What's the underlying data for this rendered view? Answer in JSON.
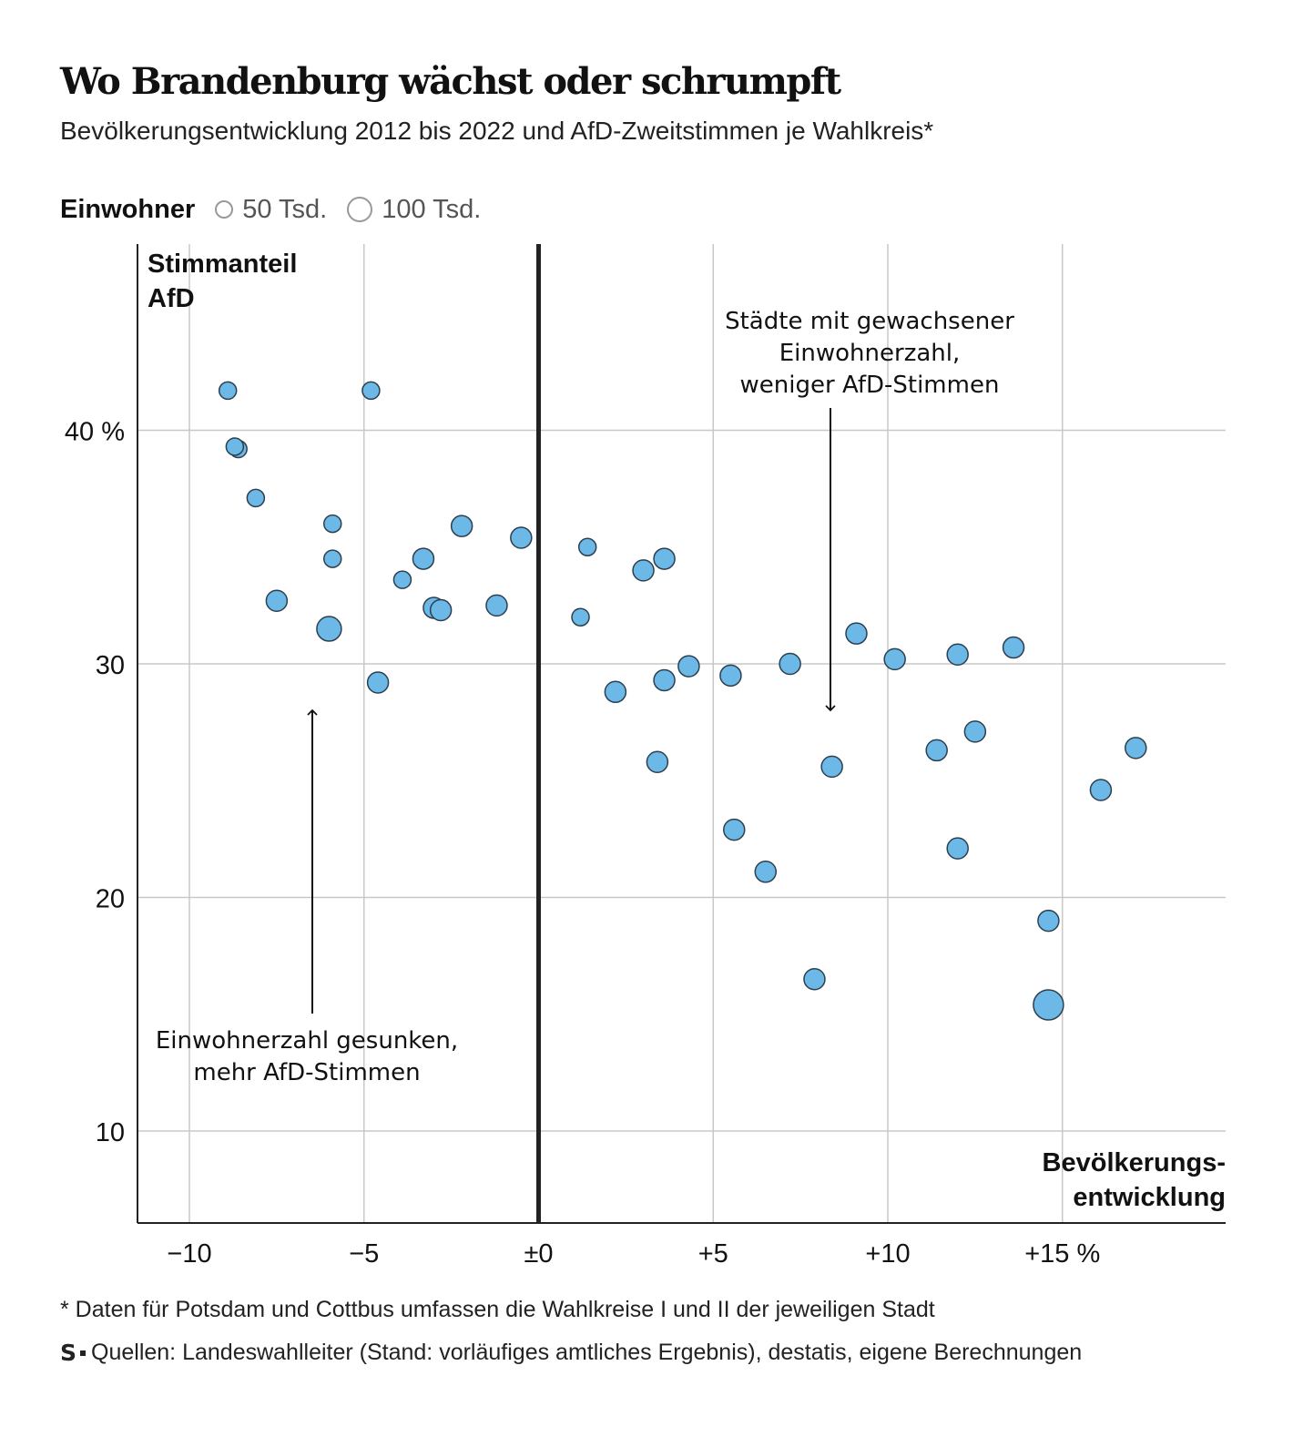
{
  "header": {
    "title": "Wo Brandenburg wächst oder schrumpft",
    "subtitle": "Bevölkerungsentwicklung 2012 bis 2022 und AfD-Zweitstimmen je Wahlkreis*"
  },
  "legend": {
    "title": "Einwohner",
    "small_label": "50 Tsd.",
    "large_label": "100 Tsd."
  },
  "footer": {
    "note": "* Daten für Potsdam und Cottbus umfassen die Wahlkreise I und II der jeweiligen Stadt",
    "source": "Quellen: Landeswahlleiter (Stand: vorläufiges amtliches Ergebnis), destatis, eigene Berechnungen",
    "logo": "S"
  },
  "colors": {
    "dot": "#6cb8e6",
    "dot_stroke": "#2d3f4f",
    "grid": "#c8c8c8",
    "zero_line": "#222222"
  },
  "chart_data": {
    "type": "scatter",
    "title": "Wo Brandenburg wächst oder schrumpft",
    "xlabel": "Bevölkerungs-\nentwicklung",
    "ylabel": "Stimmanteil\nAfD",
    "xlim": [
      -11.5,
      19.8
    ],
    "ylim": [
      6,
      48
    ],
    "x_ticks": [
      -10,
      -5,
      0,
      5,
      10,
      15
    ],
    "x_tick_labels": [
      "−10",
      "−5",
      "±0",
      "+5",
      "+10",
      "+15 %"
    ],
    "y_ticks": [
      10,
      20,
      30,
      40
    ],
    "y_tick_labels": [
      "10",
      "20",
      "30",
      "40 %"
    ],
    "grid": true,
    "annotations": [
      {
        "text": "Städte mit gewachsener\nEinwohnerzahl,\nweniger AfD-Stimmen",
        "arrow": "down"
      },
      {
        "text": "Einwohnerzahl gesunken,\nmehr AfD-Stimmen",
        "arrow": "up"
      }
    ],
    "points": [
      {
        "x": -8.9,
        "y": 41.7,
        "size": "s"
      },
      {
        "x": -4.8,
        "y": 41.7,
        "size": "s"
      },
      {
        "x": -8.6,
        "y": 39.2,
        "size": "s"
      },
      {
        "x": -8.7,
        "y": 39.3,
        "size": "s"
      },
      {
        "x": -8.1,
        "y": 37.1,
        "size": "s"
      },
      {
        "x": -5.9,
        "y": 36.0,
        "size": "s"
      },
      {
        "x": -2.2,
        "y": 35.9,
        "size": "m"
      },
      {
        "x": -0.5,
        "y": 35.4,
        "size": "m"
      },
      {
        "x": 1.4,
        "y": 35.0,
        "size": "s"
      },
      {
        "x": -5.9,
        "y": 34.5,
        "size": "s"
      },
      {
        "x": -3.3,
        "y": 34.5,
        "size": "m"
      },
      {
        "x": 3.6,
        "y": 34.5,
        "size": "m"
      },
      {
        "x": 3.0,
        "y": 34.0,
        "size": "m"
      },
      {
        "x": -3.9,
        "y": 33.6,
        "size": "s"
      },
      {
        "x": -7.5,
        "y": 32.7,
        "size": "m"
      },
      {
        "x": -1.2,
        "y": 32.5,
        "size": "m"
      },
      {
        "x": -3.0,
        "y": 32.4,
        "size": "m"
      },
      {
        "x": -2.8,
        "y": 32.3,
        "size": "m"
      },
      {
        "x": 1.2,
        "y": 32.0,
        "size": "s"
      },
      {
        "x": -6.0,
        "y": 31.5,
        "size": "l"
      },
      {
        "x": 9.1,
        "y": 31.3,
        "size": "m"
      },
      {
        "x": 13.6,
        "y": 30.7,
        "size": "m"
      },
      {
        "x": 12.0,
        "y": 30.4,
        "size": "m"
      },
      {
        "x": 10.2,
        "y": 30.2,
        "size": "m"
      },
      {
        "x": 7.2,
        "y": 30.0,
        "size": "m"
      },
      {
        "x": 4.3,
        "y": 29.9,
        "size": "m"
      },
      {
        "x": 5.5,
        "y": 29.5,
        "size": "m"
      },
      {
        "x": 3.6,
        "y": 29.3,
        "size": "m"
      },
      {
        "x": -4.6,
        "y": 29.2,
        "size": "m"
      },
      {
        "x": 2.2,
        "y": 28.8,
        "size": "m"
      },
      {
        "x": 12.5,
        "y": 27.1,
        "size": "m"
      },
      {
        "x": 17.1,
        "y": 26.4,
        "size": "m"
      },
      {
        "x": 11.4,
        "y": 26.3,
        "size": "m"
      },
      {
        "x": 3.4,
        "y": 25.8,
        "size": "m"
      },
      {
        "x": 8.4,
        "y": 25.6,
        "size": "m"
      },
      {
        "x": 16.1,
        "y": 24.6,
        "size": "m"
      },
      {
        "x": 5.6,
        "y": 22.9,
        "size": "m"
      },
      {
        "x": 12.0,
        "y": 22.1,
        "size": "m"
      },
      {
        "x": 6.5,
        "y": 21.1,
        "size": "m"
      },
      {
        "x": 14.6,
        "y": 19.0,
        "size": "m"
      },
      {
        "x": 7.9,
        "y": 16.5,
        "size": "m"
      },
      {
        "x": 14.6,
        "y": 15.4,
        "size": "xl"
      }
    ]
  }
}
